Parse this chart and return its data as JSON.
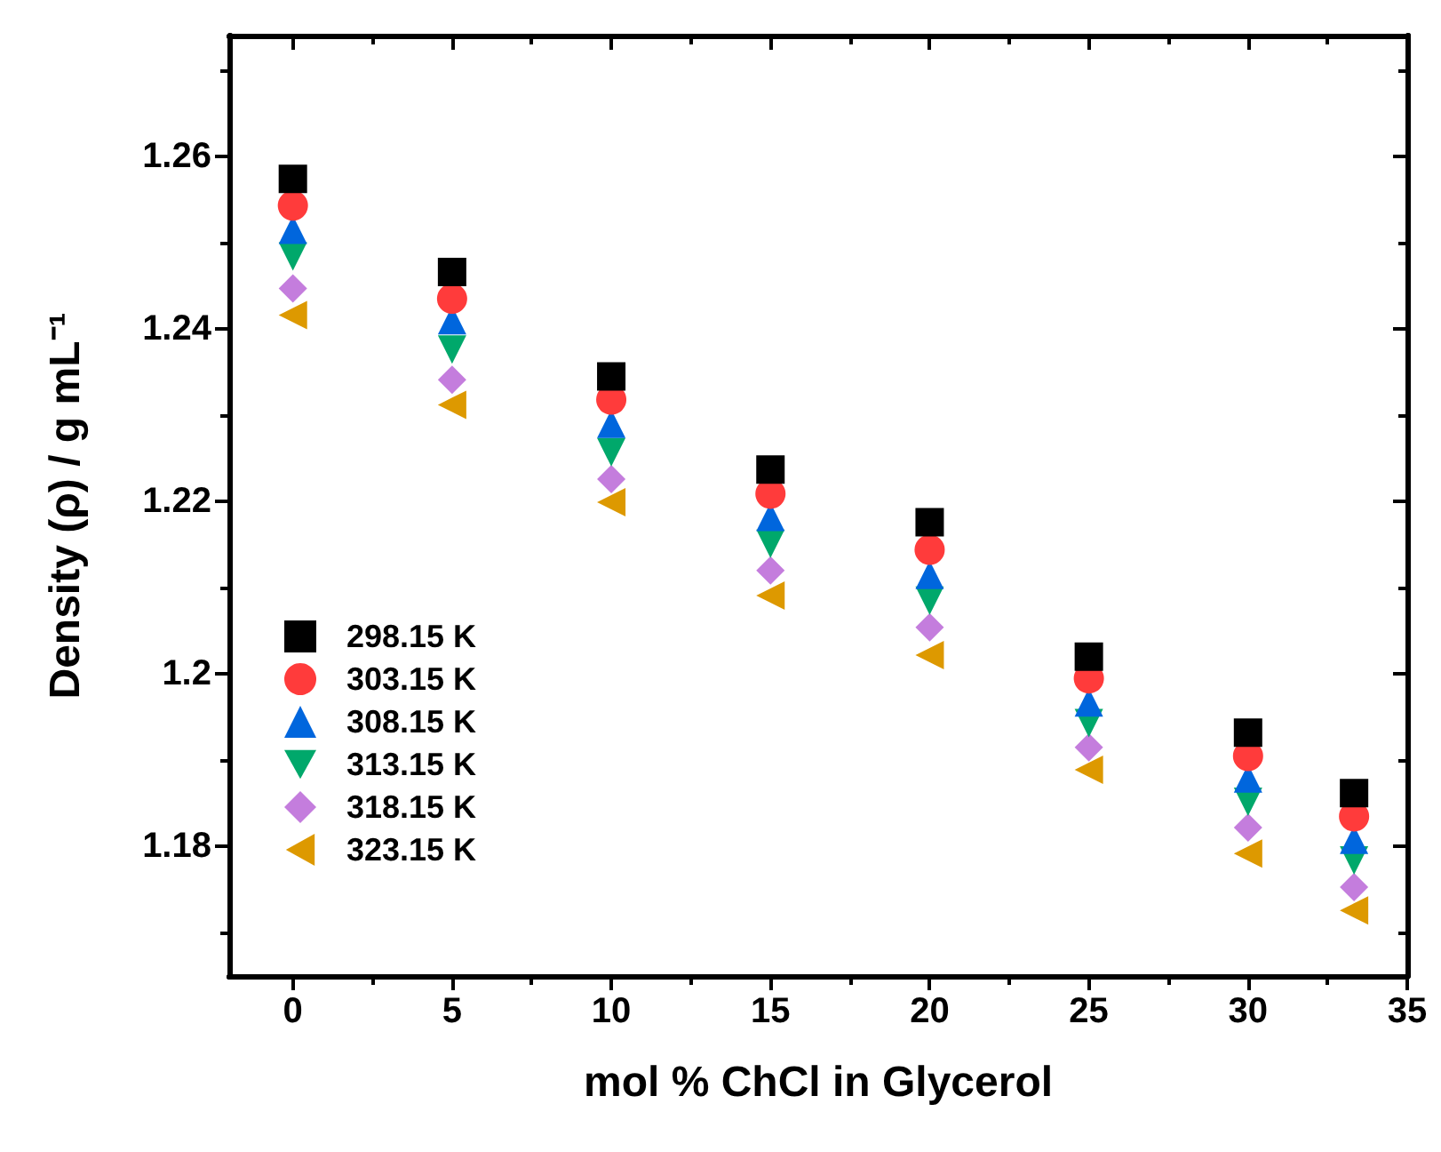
{
  "chart_data": {
    "type": "scatter",
    "xlabel": "mol % ChCl in Glycerol",
    "ylabel": "Density (ρ) / g mL⁻¹",
    "x": [
      0,
      5,
      10,
      15,
      20,
      25,
      30,
      33.33
    ],
    "xlim": [
      -2,
      35
    ],
    "xticks": [
      0,
      {
        "value": 2.5,
        "label": null
      },
      5,
      {
        "value": 7.5,
        "label": null
      },
      10,
      {
        "value": 12.5,
        "label": null
      },
      15,
      {
        "value": 17.5,
        "label": null
      },
      20,
      {
        "value": 22.5,
        "label": null
      },
      25,
      {
        "value": 27.5,
        "label": null
      },
      30,
      {
        "value": 32.5,
        "label": null
      },
      35
    ],
    "ylim": [
      1.165,
      1.274
    ],
    "yticks": [
      {
        "value": 1.17,
        "label": null
      },
      1.18,
      {
        "value": 1.19,
        "label": null
      },
      1.2,
      {
        "value": 1.21,
        "label": null
      },
      1.22,
      {
        "value": 1.23,
        "label": null
      },
      1.24,
      {
        "value": 1.25,
        "label": null
      },
      1.26,
      {
        "value": 1.27,
        "label": null
      }
    ],
    "grid": false,
    "legend": "bottom left",
    "series": [
      {
        "name": "298.15 K",
        "color": "#000000",
        "marker": "square",
        "values": [
          1.2574,
          1.2466,
          1.2345,
          1.2237,
          1.2176,
          1.202,
          1.1932,
          1.1862
        ]
      },
      {
        "name": "303.15 K",
        "color": "#ff3b3b",
        "marker": "circle",
        "values": [
          1.2543,
          1.2435,
          1.2318,
          1.2209,
          1.2144,
          1.1995,
          1.1905,
          1.1835
        ]
      },
      {
        "name": "308.15 K",
        "color": "#0066dd",
        "marker": "triangle",
        "values": [
          1.2515,
          1.241,
          1.229,
          1.2182,
          1.2115,
          1.1967,
          1.1879,
          1.1808
        ]
      },
      {
        "name": "313.15 K",
        "color": "#00a86b",
        "marker": "triangle-down",
        "values": [
          1.2484,
          1.2376,
          1.2257,
          1.2151,
          1.2085,
          1.1943,
          1.1852,
          1.1784
        ]
      },
      {
        "name": "318.15 K",
        "color": "#c47ddd",
        "marker": "diamond",
        "values": [
          1.2447,
          1.2341,
          1.2226,
          1.212,
          1.2054,
          1.1915,
          1.1822,
          1.1753
        ]
      },
      {
        "name": "323.15 K",
        "color": "#dd9900",
        "marker": "triangle-left",
        "values": [
          1.2416,
          1.2312,
          1.2199,
          1.2091,
          1.2022,
          1.1889,
          1.1792,
          1.1726
        ]
      }
    ]
  }
}
